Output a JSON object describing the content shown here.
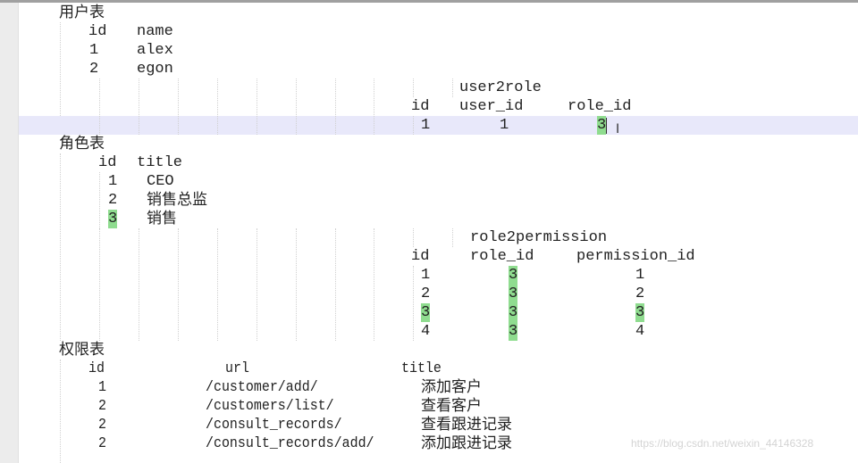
{
  "editor": {
    "user_table": {
      "title": "用户表",
      "headers": [
        "id",
        "name"
      ],
      "rows": [
        [
          "1",
          "alex"
        ],
        [
          "2",
          "egon"
        ]
      ]
    },
    "user2role": {
      "title": "user2role",
      "headers": [
        "id",
        "user_id",
        "role_id"
      ],
      "rows": [
        [
          "1",
          "1",
          "3"
        ]
      ]
    },
    "role_table": {
      "title": "角色表",
      "headers": [
        "id",
        "title"
      ],
      "rows": [
        [
          "1",
          "CEO"
        ],
        [
          "2",
          "销售总监"
        ],
        [
          "3",
          "销售"
        ]
      ]
    },
    "role2permission": {
      "title": "role2permission",
      "headers": [
        "id",
        "role_id",
        "permission_id"
      ],
      "rows": [
        [
          "1",
          "3",
          "1"
        ],
        [
          "2",
          "3",
          "2"
        ],
        [
          "3",
          "3",
          "3"
        ],
        [
          "4",
          "3",
          "4"
        ]
      ]
    },
    "permission_table": {
      "title": "权限表",
      "headers": [
        "id",
        "url",
        "title"
      ],
      "rows": [
        [
          "1",
          "/customer/add/",
          "添加客户"
        ],
        [
          "2",
          "/customers/list/",
          "查看客户"
        ],
        [
          "2",
          "/consult_records/",
          "查看跟进记录"
        ],
        [
          "2",
          "/consult_records/add/",
          "添加跟进记录"
        ]
      ]
    },
    "highlight_color": "#8fdc8f",
    "current_line_color": "#e8e8fa"
  },
  "watermark": "https://blog.csdn.net/weixin_44146328"
}
